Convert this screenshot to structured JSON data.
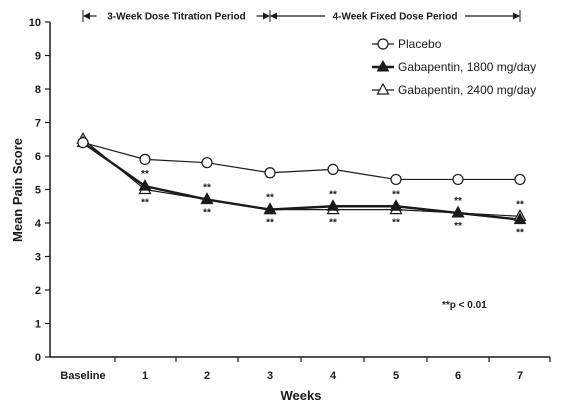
{
  "chart_data": {
    "type": "line",
    "xlabel": "Weeks",
    "ylabel": "Mean Pain Score",
    "ylim": [
      0,
      10
    ],
    "yticks": [
      "0",
      "1",
      "2",
      "3",
      "4",
      "5",
      "6",
      "7",
      "8",
      "9",
      "10"
    ],
    "categories": [
      "Baseline",
      "1",
      "2",
      "3",
      "4",
      "5",
      "6",
      "7"
    ],
    "series": [
      {
        "name": "Placebo",
        "marker": "open-circle",
        "values": [
          6.4,
          5.9,
          5.8,
          5.5,
          5.6,
          5.3,
          5.3,
          5.3
        ]
      },
      {
        "name": "Gabapentin, 1800 mg/day",
        "marker": "filled-triangle",
        "values": [
          6.4,
          5.1,
          4.7,
          4.4,
          4.5,
          4.5,
          4.3,
          4.1
        ]
      },
      {
        "name": "Gabapentin, 2400 mg/day",
        "marker": "open-triangle",
        "values": [
          6.5,
          5.0,
          4.7,
          4.4,
          4.4,
          4.4,
          4.3,
          4.2
        ]
      }
    ],
    "periods": [
      {
        "label": "3-Week Dose Titration Period",
        "start": "Baseline",
        "end": "3"
      },
      {
        "label": "4-Week Fixed Dose Period",
        "start": "3",
        "end": "7"
      }
    ],
    "significance": {
      "marker": "**",
      "note": "**p < 0.01",
      "categories": [
        "1",
        "2",
        "3",
        "4",
        "5",
        "6",
        "7"
      ]
    },
    "legend_position": "top-right",
    "grid": false
  }
}
